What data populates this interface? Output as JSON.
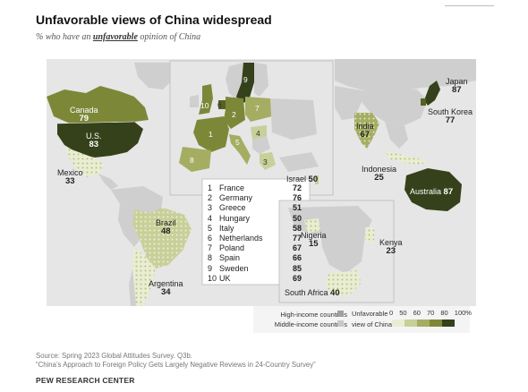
{
  "title": "Unfavorable views of China widespread",
  "subtitle_prefix": "% who have an",
  "subtitle_keyword": "unfavorable",
  "subtitle_suffix": "opinion of China",
  "colors": {
    "ocean": "#ffffff",
    "inset_bg": "#e6e6e6",
    "other_land": "#cfcfcf",
    "high_income_base": "#d9d9d9",
    "scale": [
      "#e9edd3",
      "#c8cf98",
      "#a4ad62",
      "#7c8838",
      "#56621f",
      "#35411a"
    ]
  },
  "countries": [
    {
      "name": "Canada",
      "value": "79"
    },
    {
      "name": "U.S.",
      "value": "83"
    },
    {
      "name": "Mexico",
      "value": "33"
    },
    {
      "name": "Brazil",
      "value": "48"
    },
    {
      "name": "Argentina",
      "value": "34"
    },
    {
      "name": "Israel",
      "value": "50"
    },
    {
      "name": "India",
      "value": "67"
    },
    {
      "name": "Japan",
      "value": "87"
    },
    {
      "name": "South Korea",
      "value": "77"
    },
    {
      "name": "Indonesia",
      "value": "25"
    },
    {
      "name": "Australia",
      "value": "87"
    },
    {
      "name": "Nigeria",
      "value": "15"
    },
    {
      "name": "Kenya",
      "value": "23"
    },
    {
      "name": "South Africa",
      "value": "40"
    }
  ],
  "europe_numbers": [
    "1",
    "2",
    "3",
    "4",
    "5",
    "6",
    "7",
    "8",
    "9",
    "10"
  ],
  "europe": [
    {
      "index": "1",
      "name": "France",
      "value": "72"
    },
    {
      "index": "2",
      "name": "Germany",
      "value": "76"
    },
    {
      "index": "3",
      "name": "Greece",
      "value": "51"
    },
    {
      "index": "4",
      "name": "Hungary",
      "value": "50"
    },
    {
      "index": "5",
      "name": "Italy",
      "value": "58"
    },
    {
      "index": "6",
      "name": "Netherlands",
      "value": "77"
    },
    {
      "index": "7",
      "name": "Poland",
      "value": "67"
    },
    {
      "index": "8",
      "name": "Spain",
      "value": "66"
    },
    {
      "index": "9",
      "name": "Sweden",
      "value": "85"
    },
    {
      "index": "10",
      "name": "UK",
      "value": "69"
    }
  ],
  "legend": {
    "high_income": "High-income countries",
    "middle_income": "Middle-income countries",
    "scale_label_1": "Unfavorable",
    "scale_label_2": "view of China",
    "ticks": [
      "0",
      "50",
      "60",
      "70",
      "80",
      "100%"
    ]
  },
  "source_line1": "Source: Spring 2023 Global Attitudes Survey. Q3b.",
  "source_line2": "“China’s Approach to Foreign Policy Gets Largely Negative Reviews in 24-Country Survey”",
  "brand": "PEW RESEARCH CENTER"
}
